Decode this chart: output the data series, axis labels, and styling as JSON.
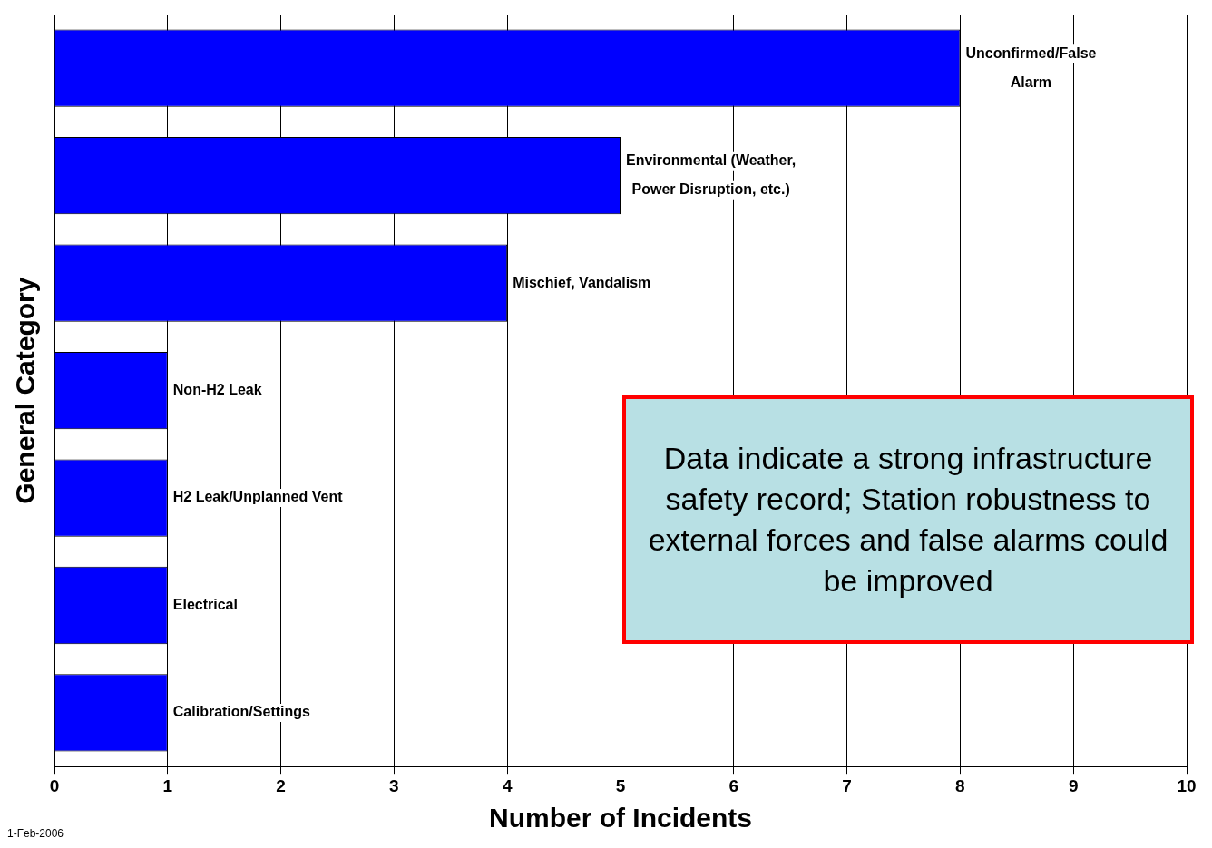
{
  "chart_data": {
    "type": "bar",
    "orientation": "horizontal",
    "xlabel": "Number of Incidents",
    "ylabel": "General Category",
    "categories": [
      "Unconfirmed/False Alarm",
      "Environmental (Weather, Power Disruption, etc.)",
      "Mischief, Vandalism",
      "Non-H2 Leak",
      "H2 Leak/Unplanned Vent",
      "Electrical",
      "Calibration/Settings"
    ],
    "values": [
      8,
      5,
      4,
      1,
      1,
      1,
      1
    ],
    "color": "#0000ff",
    "xlim": [
      0,
      10
    ],
    "xticks": [
      0,
      1,
      2,
      3,
      4,
      5,
      6,
      7,
      8,
      9,
      10
    ],
    "grid": "x",
    "legend": false,
    "tick_labels": "x",
    "annotations": [
      "Data indicate a strong infrastructure safety record; Station robustness to external forces and false alarms could be improved",
      "1-Feb-2006"
    ]
  }
}
